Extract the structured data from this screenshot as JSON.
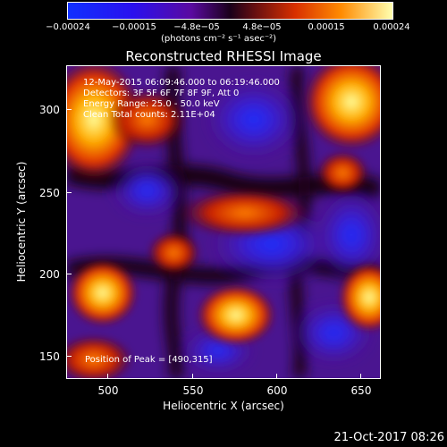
{
  "colorbar": {
    "tick_labels": [
      "−0.00024",
      "−0.00015",
      "−4.8e−05",
      "4.8e−05",
      "0.00015",
      "0.00024"
    ],
    "unit_label": "(photons cm⁻² s⁻¹ asec⁻²)"
  },
  "title": "Reconstructed RHESSI Image",
  "annotations": {
    "line1": "12-May-2015 06:09:46.000 to 06:19:46.000",
    "line2": "Detectors: 3F 5F 6F 7F 8F 9F, Att 0",
    "line3": "Energy Range: 25.0 - 50.0 keV",
    "line4": "Clean    Total counts: 2.11E+04",
    "peak": "Position of Peak = [490,315]"
  },
  "axes": {
    "xlabel": "Heliocentric X (arcsec)",
    "ylabel": "Heliocentric Y (arcsec)",
    "x_ticks": [
      "500",
      "550",
      "600",
      "650"
    ],
    "y_ticks": [
      "300",
      "250",
      "200",
      "150"
    ]
  },
  "timestamp": "21-Oct-2017 08:26",
  "colors": {
    "background": "#000000",
    "foreground": "#ffffff"
  }
}
